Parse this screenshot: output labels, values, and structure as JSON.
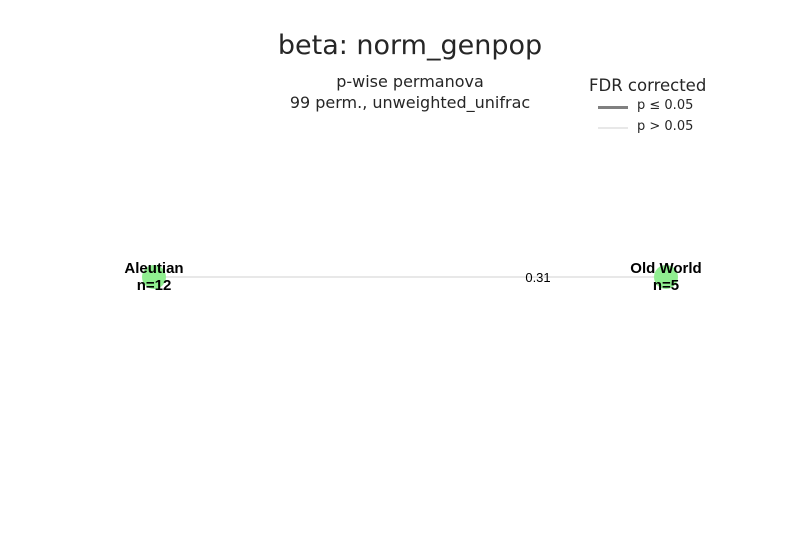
{
  "title": "beta: norm_genpop",
  "subtitle_line1": "p-wise permanova",
  "subtitle_line2": "99 perm., unweighted_unifrac",
  "legend": {
    "title": "FDR corrected",
    "items": [
      {
        "label": "p ≤ 0.05",
        "color": "#808080"
      },
      {
        "label": "p > 0.05",
        "color": "#e8e8e8"
      }
    ]
  },
  "graph": {
    "node_color": "#90ee90",
    "edge_color": "#e0e0e0",
    "nodes": [
      {
        "name": "Aleutian",
        "n": "n=12"
      },
      {
        "name": "Old World",
        "n": "n=5"
      }
    ],
    "edges": [
      {
        "from": "Aleutian",
        "to": "Old World",
        "p_value": "0.31",
        "significant": false
      }
    ]
  }
}
